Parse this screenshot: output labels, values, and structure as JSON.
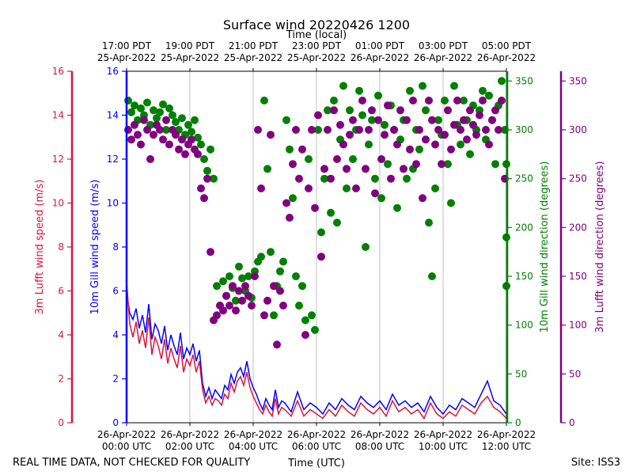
{
  "chart_data": {
    "type": "scatter",
    "title": "Surface wind 20220426 1200",
    "top_xlabel": "Time (local)",
    "xlabel": "Time (UTC)",
    "footer_left": "REAL TIME DATA, NOT CHECKED FOR QUALITY",
    "footer_right": "Site: ISS3",
    "xlim": [
      0,
      12
    ],
    "bottom_ticks": [
      {
        "x": 0,
        "l1": "26-Apr-2022",
        "l2": "00:00 UTC"
      },
      {
        "x": 2,
        "l1": "26-Apr-2022",
        "l2": "02:00 UTC"
      },
      {
        "x": 4,
        "l1": "26-Apr-2022",
        "l2": "04:00 UTC"
      },
      {
        "x": 6,
        "l1": "26-Apr-2022",
        "l2": "06:00 UTC"
      },
      {
        "x": 8,
        "l1": "26-Apr-2022",
        "l2": "08:00 UTC"
      },
      {
        "x": 10,
        "l1": "26-Apr-2022",
        "l2": "10:00 UTC"
      },
      {
        "x": 12,
        "l1": "26-Apr-2022",
        "l2": "12:00 UTC"
      }
    ],
    "top_ticks": [
      {
        "x": 0,
        "l1": "17:00 PDT",
        "l2": "25-Apr-2022"
      },
      {
        "x": 2,
        "l1": "19:00 PDT",
        "l2": "25-Apr-2022"
      },
      {
        "x": 4,
        "l1": "21:00 PDT",
        "l2": "25-Apr-2022"
      },
      {
        "x": 6,
        "l1": "23:00 PDT",
        "l2": "25-Apr-2022"
      },
      {
        "x": 8,
        "l1": "01:00 PDT",
        "l2": "26-Apr-2022"
      },
      {
        "x": 10,
        "l1": "03:00 PDT",
        "l2": "26-Apr-2022"
      },
      {
        "x": 12,
        "l1": "05:00 PDT",
        "l2": "26-Apr-2022"
      }
    ],
    "axes": {
      "gill_speed": {
        "label": "10m Gill wind speed (m/s)",
        "color": "#0000ff",
        "ylim": [
          0,
          16
        ],
        "ticks": [
          0,
          2,
          4,
          6,
          8,
          10,
          12,
          14,
          16
        ]
      },
      "lufft_speed": {
        "label": "3m Lufft wind speed (m/s)",
        "color": "#dc143c",
        "ylim": [
          0,
          16
        ],
        "ticks": [
          0,
          2,
          4,
          6,
          8,
          10,
          12,
          14,
          16
        ]
      },
      "gill_dir": {
        "label": "10m Gill wind direction (degrees)",
        "color": "#008000",
        "ylim": [
          0,
          360
        ],
        "ticks": [
          0,
          50,
          100,
          150,
          200,
          250,
          300,
          350
        ]
      },
      "lufft_dir": {
        "label": "3m Lufft wind direction (degrees)",
        "color": "#800080",
        "ylim": [
          0,
          360
        ],
        "ticks": [
          0,
          50,
          100,
          150,
          200,
          250,
          300,
          350
        ]
      }
    },
    "series": [
      {
        "name": "10m Gill wind speed",
        "axis": "gill_speed",
        "kind": "line",
        "color": "#0000ff",
        "x": [
          0,
          0.1,
          0.2,
          0.3,
          0.4,
          0.5,
          0.6,
          0.7,
          0.8,
          0.9,
          1.0,
          1.1,
          1.2,
          1.3,
          1.4,
          1.5,
          1.6,
          1.7,
          1.8,
          1.9,
          2.0,
          2.1,
          2.2,
          2.3,
          2.4,
          2.5,
          2.6,
          2.7,
          2.8,
          2.9,
          3.0,
          3.1,
          3.2,
          3.3,
          3.4,
          3.5,
          3.6,
          3.7,
          3.8,
          3.9,
          4.0,
          4.1,
          4.2,
          4.3,
          4.4,
          4.5,
          4.6,
          4.7,
          4.8,
          4.9,
          5.0,
          5.2,
          5.4,
          5.6,
          5.8,
          6.0,
          6.2,
          6.4,
          6.6,
          6.8,
          7.0,
          7.2,
          7.4,
          7.6,
          7.8,
          8.0,
          8.2,
          8.4,
          8.6,
          8.8,
          9.0,
          9.2,
          9.4,
          9.6,
          9.8,
          10.0,
          10.2,
          10.4,
          10.6,
          10.8,
          11.0,
          11.2,
          11.4,
          11.6,
          11.8,
          12.0
        ],
        "y": [
          5.9,
          5.0,
          4.7,
          5.2,
          4.3,
          4.9,
          4.1,
          5.4,
          3.8,
          4.5,
          4.2,
          3.6,
          4.4,
          3.3,
          4.0,
          3.5,
          3.1,
          4.1,
          2.9,
          3.4,
          3.1,
          3.6,
          2.8,
          3.3,
          1.8,
          1.2,
          1.6,
          1.1,
          1.5,
          1.3,
          1.1,
          1.7,
          1.5,
          2.2,
          1.8,
          2.3,
          2.5,
          2.1,
          2.8,
          2.0,
          1.6,
          1.3,
          0.9,
          0.6,
          1.1,
          0.8,
          0.6,
          1.5,
          0.7,
          1.0,
          0.9,
          0.5,
          1.4,
          0.6,
          0.9,
          0.7,
          0.4,
          0.9,
          0.6,
          1.1,
          0.8,
          0.6,
          1.2,
          0.9,
          0.7,
          1.0,
          0.6,
          1.3,
          0.8,
          1.0,
          0.7,
          0.9,
          0.5,
          1.2,
          0.7,
          0.4,
          0.8,
          0.6,
          1.1,
          0.9,
          0.7,
          1.3,
          1.9,
          1.0,
          0.8,
          0.4
        ]
      },
      {
        "name": "3m Lufft wind speed",
        "axis": "lufft_speed",
        "kind": "line",
        "color": "#dc143c",
        "x": [
          0,
          0.1,
          0.2,
          0.3,
          0.4,
          0.5,
          0.6,
          0.7,
          0.8,
          0.9,
          1.0,
          1.1,
          1.2,
          1.3,
          1.4,
          1.5,
          1.6,
          1.7,
          1.8,
          1.9,
          2.0,
          2.1,
          2.2,
          2.3,
          2.4,
          2.5,
          2.6,
          2.7,
          2.8,
          2.9,
          3.0,
          3.1,
          3.2,
          3.3,
          3.4,
          3.5,
          3.6,
          3.7,
          3.8,
          3.9,
          4.0,
          4.1,
          4.2,
          4.3,
          4.4,
          4.5,
          4.6,
          4.7,
          4.8,
          4.9,
          5.0,
          5.2,
          5.4,
          5.6,
          5.8,
          6.0,
          6.2,
          6.4,
          6.6,
          6.8,
          7.0,
          7.2,
          7.4,
          7.6,
          7.8,
          8.0,
          8.2,
          8.4,
          8.6,
          8.8,
          9.0,
          9.2,
          9.4,
          9.6,
          9.8,
          10.0,
          10.2,
          10.4,
          10.6,
          10.8,
          11.0,
          11.2,
          11.4,
          11.6,
          11.8,
          12.0
        ],
        "y": [
          6.4,
          4.5,
          3.9,
          4.6,
          3.6,
          4.2,
          3.4,
          4.8,
          3.1,
          3.9,
          3.5,
          2.9,
          3.8,
          2.7,
          3.4,
          2.9,
          2.5,
          3.5,
          2.3,
          2.9,
          2.6,
          3.1,
          2.3,
          2.8,
          1.5,
          0.9,
          1.2,
          0.8,
          1.1,
          1.0,
          0.8,
          1.3,
          1.1,
          1.8,
          1.4,
          1.9,
          2.1,
          1.7,
          2.3,
          1.6,
          1.2,
          0.9,
          0.6,
          0.4,
          0.8,
          0.5,
          0.3,
          1.1,
          0.4,
          0.7,
          0.6,
          0.3,
          1.0,
          0.3,
          0.6,
          0.4,
          0.2,
          0.6,
          0.3,
          0.8,
          0.5,
          0.3,
          0.9,
          0.6,
          0.4,
          0.7,
          0.3,
          1.0,
          0.5,
          0.7,
          0.4,
          0.6,
          0.2,
          0.9,
          0.4,
          0.2,
          0.5,
          0.3,
          0.8,
          0.6,
          0.4,
          0.9,
          1.2,
          0.7,
          0.5,
          0.2
        ]
      },
      {
        "name": "10m Gill wind direction",
        "axis": "gill_dir",
        "kind": "scatter",
        "color": "#008000",
        "x": [
          0.05,
          0.15,
          0.25,
          0.35,
          0.45,
          0.55,
          0.65,
          0.75,
          0.85,
          0.95,
          1.05,
          1.15,
          1.25,
          1.35,
          1.45,
          1.55,
          1.65,
          1.75,
          1.85,
          1.95,
          2.05,
          2.15,
          2.25,
          2.35,
          2.45,
          2.55,
          2.65,
          2.75,
          2.85,
          2.95,
          3.05,
          3.15,
          3.25,
          3.35,
          3.45,
          3.55,
          3.65,
          3.75,
          3.85,
          3.95,
          4.05,
          4.15,
          4.25,
          4.35,
          4.45,
          4.55,
          4.65,
          4.75,
          4.85,
          4.95,
          5.05,
          5.15,
          5.25,
          5.35,
          5.45,
          5.55,
          5.65,
          5.75,
          5.85,
          5.95,
          6.05,
          6.15,
          6.25,
          6.35,
          6.45,
          6.55,
          6.65,
          6.75,
          6.85,
          6.95,
          7.05,
          7.15,
          7.25,
          7.35,
          7.45,
          7.55,
          7.65,
          7.75,
          7.85,
          7.95,
          8.05,
          8.15,
          8.25,
          8.35,
          8.45,
          8.55,
          8.65,
          8.75,
          8.85,
          8.95,
          9.05,
          9.15,
          9.25,
          9.35,
          9.45,
          9.55,
          9.65,
          9.75,
          9.85,
          9.95,
          10.05,
          10.15,
          10.25,
          10.35,
          10.45,
          10.55,
          10.65,
          10.75,
          10.85,
          10.95,
          11.05,
          11.15,
          11.25,
          11.35,
          11.45,
          11.55,
          11.65,
          11.75,
          11.85,
          11.95,
          12.0,
          12.0,
          12.0
        ],
        "y": [
          330,
          318,
          325,
          310,
          322,
          315,
          328,
          305,
          320,
          312,
          318,
          326,
          300,
          322,
          315,
          308,
          300,
          312,
          295,
          305,
          298,
          310,
          292,
          285,
          270,
          258,
          280,
          250,
          140,
          120,
          145,
          130,
          150,
          138,
          125,
          160,
          148,
          135,
          150,
          128,
          155,
          165,
          170,
          330,
          260,
          175,
          110,
          140,
          155,
          165,
          310,
          280,
          230,
          150,
          120,
          140,
          105,
          270,
          110,
          95,
          300,
          195,
          250,
          320,
          215,
          330,
          205,
          290,
          345,
          240,
          320,
          270,
          300,
          340,
          315,
          180,
          285,
          310,
          250,
          335,
          230,
          305,
          265,
          325,
          300,
          220,
          290,
          310,
          250,
          340,
          260,
          300,
          280,
          345,
          320,
          205,
          150,
          240,
          310,
          295,
          330,
          265,
          225,
          345,
          305,
          285,
          330,
          310,
          275,
          325,
          300,
          320,
          340,
          290,
          335,
          310,
          265,
          325,
          350,
          300,
          265,
          190,
          140
        ]
      },
      {
        "name": "3m Lufft wind direction",
        "axis": "lufft_dir",
        "kind": "scatter",
        "color": "#800080",
        "x": [
          0.05,
          0.15,
          0.25,
          0.35,
          0.45,
          0.55,
          0.65,
          0.75,
          0.85,
          0.95,
          1.05,
          1.15,
          1.25,
          1.35,
          1.45,
          1.55,
          1.65,
          1.75,
          1.85,
          1.95,
          2.05,
          2.15,
          2.25,
          2.35,
          2.45,
          2.55,
          2.65,
          2.75,
          2.85,
          2.95,
          3.05,
          3.15,
          3.25,
          3.35,
          3.45,
          3.55,
          3.65,
          3.75,
          3.85,
          3.95,
          4.05,
          4.15,
          4.25,
          4.35,
          4.45,
          4.55,
          4.65,
          4.75,
          4.85,
          4.95,
          5.05,
          5.15,
          5.25,
          5.35,
          5.45,
          5.55,
          5.65,
          5.75,
          5.85,
          5.95,
          6.05,
          6.15,
          6.25,
          6.35,
          6.45,
          6.55,
          6.65,
          6.75,
          6.85,
          6.95,
          7.05,
          7.15,
          7.25,
          7.35,
          7.45,
          7.55,
          7.65,
          7.75,
          7.85,
          7.95,
          8.05,
          8.15,
          8.25,
          8.35,
          8.45,
          8.55,
          8.65,
          8.75,
          8.85,
          8.95,
          9.05,
          9.15,
          9.25,
          9.35,
          9.45,
          9.55,
          9.65,
          9.75,
          9.85,
          9.95,
          10.05,
          10.15,
          10.25,
          10.35,
          10.45,
          10.55,
          10.65,
          10.75,
          10.85,
          10.95,
          11.05,
          11.15,
          11.25,
          11.35,
          11.45,
          11.55,
          11.65,
          11.75,
          11.85,
          11.95
        ],
        "y": [
          300,
          290,
          305,
          295,
          285,
          310,
          300,
          270,
          295,
          305,
          300,
          290,
          310,
          285,
          300,
          295,
          280,
          290,
          275,
          285,
          290,
          280,
          275,
          240,
          230,
          250,
          175,
          105,
          110,
          120,
          115,
          130,
          120,
          140,
          115,
          135,
          125,
          140,
          130,
          120,
          150,
          300,
          240,
          110,
          125,
          295,
          140,
          80,
          135,
          120,
          225,
          210,
          265,
          300,
          250,
          280,
          90,
          240,
          300,
          220,
          315,
          170,
          260,
          300,
          250,
          320,
          270,
          305,
          285,
          260,
          295,
          310,
          240,
          300,
          330,
          260,
          300,
          320,
          235,
          310,
          270,
          295,
          325,
          250,
          300,
          285,
          320,
          260,
          310,
          280,
          330,
          265,
          300,
          230,
          290,
          330,
          310,
          285,
          300,
          265,
          295,
          320,
          280,
          305,
          330,
          300,
          310,
          290,
          320,
          305,
          295,
          315,
          330,
          300,
          285,
          310,
          320,
          300,
          330,
          250
        ]
      }
    ]
  }
}
